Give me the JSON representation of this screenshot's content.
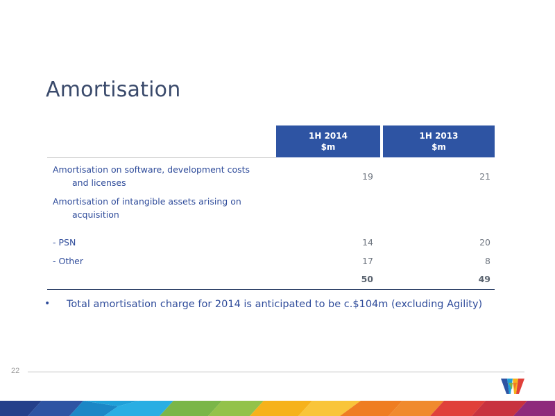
{
  "slide": {
    "title": "Amortisation",
    "page_number": "22"
  },
  "table": {
    "headers": [
      {
        "line1": "1H 2014",
        "line2": "$m"
      },
      {
        "line1": "1H 2013",
        "line2": "$m"
      }
    ],
    "rows": [
      {
        "label_line1": "Amortisation on software, development costs",
        "label_line2": "and licenses",
        "v2014": "19",
        "v2013": "21"
      },
      {
        "label_line1": "Amortisation of intangible assets arising on",
        "label_line2": "acquisition",
        "v2014": "",
        "v2013": ""
      },
      {
        "label_line1": "- PSN",
        "label_line2": "",
        "v2014": "14",
        "v2013": "20"
      },
      {
        "label_line1": "- Other",
        "label_line2": "",
        "v2014": "17",
        "v2013": "8"
      },
      {
        "label_line1": "",
        "label_line2": "",
        "v2014": "50",
        "v2013": "49"
      }
    ]
  },
  "bullets": [
    "Total amortisation charge for 2014 is anticipated to be c.$104m (excluding Agility)"
  ],
  "colors": {
    "title": "#3a4a6b",
    "header_fill": "#2e54a3",
    "label_text": "#2e4b9a",
    "value_text": "#6f7680",
    "ribbon": [
      "#2e54a3",
      "#1fa0d8",
      "#7ab648",
      "#f6b21b",
      "#ef7d22",
      "#e0403a",
      "#8e2a7c"
    ]
  },
  "icons": {
    "logo": "company-w-logo",
    "bullet": "bullet-dot"
  }
}
